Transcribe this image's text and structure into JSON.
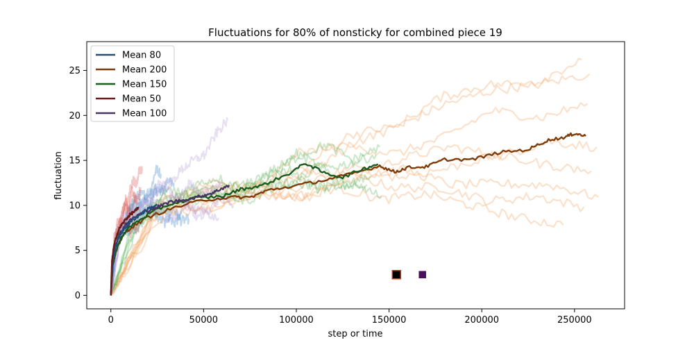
{
  "chart_data": {
    "type": "line",
    "title": "Fluctuations for 80% of nonsticky for combined piece 19",
    "xlabel": "step or time",
    "ylabel": "fluctuation",
    "xlim": [
      -13000,
      277000
    ],
    "ylim": [
      -1.5,
      28.2
    ],
    "xticks": [
      0,
      50000,
      100000,
      150000,
      200000,
      250000
    ],
    "yticks": [
      0,
      5,
      10,
      15,
      20,
      25
    ],
    "grid": false,
    "legend_position": "top-left",
    "series": [
      {
        "name": "Mean 80",
        "color": "#1f4e79",
        "x_end": 25000,
        "points": [
          [
            0,
            0
          ],
          [
            800,
            3.5
          ],
          [
            2500,
            5.5
          ],
          [
            5000,
            6.8
          ],
          [
            8000,
            7.6
          ],
          [
            12000,
            8.4
          ],
          [
            16000,
            9.0
          ],
          [
            20000,
            9.6
          ],
          [
            25000,
            10.1
          ]
        ],
        "runs": [
          {
            "x_end": 30000,
            "end": 11.5,
            "color": "#3b83c4"
          },
          {
            "x_end": 38000,
            "end": 9.0,
            "color": "#3b83c4"
          },
          {
            "x_end": 34000,
            "end": 12.5,
            "color": "#3b83c4"
          },
          {
            "x_end": 42000,
            "end": 8.5,
            "color": "#3b83c4"
          },
          {
            "x_end": 27000,
            "end": 13.5,
            "color": "#3b83c4"
          }
        ]
      },
      {
        "name": "Mean 200",
        "color": "#7f3b08",
        "x_end": 256000,
        "points": [
          [
            0,
            0
          ],
          [
            1000,
            3.4
          ],
          [
            3000,
            5.0
          ],
          [
            6000,
            6.5
          ],
          [
            10000,
            7.4
          ],
          [
            20000,
            8.7
          ],
          [
            35000,
            9.8
          ],
          [
            50000,
            10.6
          ],
          [
            65000,
            10.9
          ],
          [
            75000,
            10.9
          ],
          [
            85000,
            11.7
          ],
          [
            100000,
            12.2
          ],
          [
            115000,
            12.8
          ],
          [
            130000,
            13.5
          ],
          [
            145000,
            14.4
          ],
          [
            153000,
            13.7
          ],
          [
            160000,
            14.2
          ],
          [
            170000,
            14.3
          ],
          [
            180000,
            15.1
          ],
          [
            195000,
            15.1
          ],
          [
            210000,
            15.9
          ],
          [
            225000,
            16.2
          ],
          [
            235000,
            17.2
          ],
          [
            245000,
            17.6
          ],
          [
            250000,
            18.0
          ],
          [
            256000,
            17.7
          ]
        ],
        "runs": [
          {
            "x_end": 262000,
            "end": 16.5,
            "color": "#f3a15e"
          },
          {
            "x_end": 258000,
            "end": 24.6,
            "color": "#f3a15e"
          },
          {
            "x_end": 255000,
            "end": 9.8,
            "color": "#f3a15e"
          },
          {
            "x_end": 263000,
            "end": 10.9,
            "color": "#f3a15e"
          },
          {
            "x_end": 257000,
            "end": 21.3,
            "color": "#f3a15e"
          },
          {
            "x_end": 244000,
            "end": 7.8,
            "color": "#f3a15e"
          },
          {
            "x_end": 254000,
            "end": 26.2,
            "color": "#f3a15e"
          },
          {
            "x_end": 259000,
            "end": 13.8,
            "color": "#f3a15e"
          }
        ]
      },
      {
        "name": "Mean 150",
        "color": "#1a5c1f",
        "x_end": 144000,
        "points": [
          [
            0,
            0
          ],
          [
            1000,
            3.4
          ],
          [
            3000,
            5.1
          ],
          [
            6000,
            6.6
          ],
          [
            10000,
            7.6
          ],
          [
            20000,
            9.0
          ],
          [
            30000,
            10.0
          ],
          [
            45000,
            10.8
          ],
          [
            60000,
            11.0
          ],
          [
            70000,
            11.8
          ],
          [
            80000,
            12.1
          ],
          [
            95000,
            13.4
          ],
          [
            105000,
            14.7
          ],
          [
            115000,
            13.6
          ],
          [
            125000,
            13.1
          ],
          [
            135000,
            14.0
          ],
          [
            144000,
            14.6
          ]
        ],
        "runs": [
          {
            "x_end": 143000,
            "end": 15.6,
            "color": "#5fb55c"
          },
          {
            "x_end": 146000,
            "end": 11.0,
            "color": "#5fb55c"
          },
          {
            "x_end": 140000,
            "end": 13.2,
            "color": "#5fb55c"
          },
          {
            "x_end": 145000,
            "end": 16.5,
            "color": "#5fb55c"
          },
          {
            "x_end": 138000,
            "end": 12.3,
            "color": "#5fb55c"
          }
        ]
      },
      {
        "name": "Mean 50",
        "color": "#6b1a1a",
        "x_end": 15000,
        "points": [
          [
            0,
            0
          ],
          [
            600,
            3.8
          ],
          [
            1500,
            5.3
          ],
          [
            3000,
            6.6
          ],
          [
            5000,
            7.6
          ],
          [
            7500,
            8.3
          ],
          [
            10000,
            8.9
          ],
          [
            12500,
            9.3
          ],
          [
            15000,
            9.7
          ]
        ],
        "runs": [
          {
            "x_end": 16000,
            "end": 12.0,
            "color": "#d9534f"
          },
          {
            "x_end": 15000,
            "end": 7.2,
            "color": "#d9534f"
          },
          {
            "x_end": 17000,
            "end": 13.8,
            "color": "#d9534f"
          },
          {
            "x_end": 14000,
            "end": 10.4,
            "color": "#d9534f"
          }
        ]
      },
      {
        "name": "Mean 100",
        "color": "#4a3460",
        "x_end": 64000,
        "points": [
          [
            0,
            0
          ],
          [
            800,
            3.6
          ],
          [
            2500,
            5.6
          ],
          [
            5000,
            6.9
          ],
          [
            8000,
            7.9
          ],
          [
            12000,
            8.6
          ],
          [
            18000,
            9.3
          ],
          [
            25000,
            9.8
          ],
          [
            32000,
            10.4
          ],
          [
            40000,
            10.6
          ],
          [
            48000,
            11.0
          ],
          [
            55000,
            11.4
          ],
          [
            60000,
            11.9
          ],
          [
            64000,
            12.2
          ]
        ],
        "runs": [
          {
            "x_end": 63000,
            "end": 19.5,
            "color": "#b59ad6"
          },
          {
            "x_end": 66000,
            "end": 10.0,
            "color": "#b59ad6"
          },
          {
            "x_end": 60000,
            "end": 12.8,
            "color": "#b59ad6"
          },
          {
            "x_end": 58000,
            "end": 8.6,
            "color": "#b59ad6"
          }
        ]
      }
    ],
    "markers": [
      {
        "x": 154000,
        "y": 2.3,
        "fill": "#000000",
        "edge": "#e03010",
        "size": 12
      },
      {
        "x": 168000,
        "y": 2.3,
        "fill": "#4b0f5c",
        "edge": "#4b0f5c",
        "size": 9
      }
    ]
  }
}
